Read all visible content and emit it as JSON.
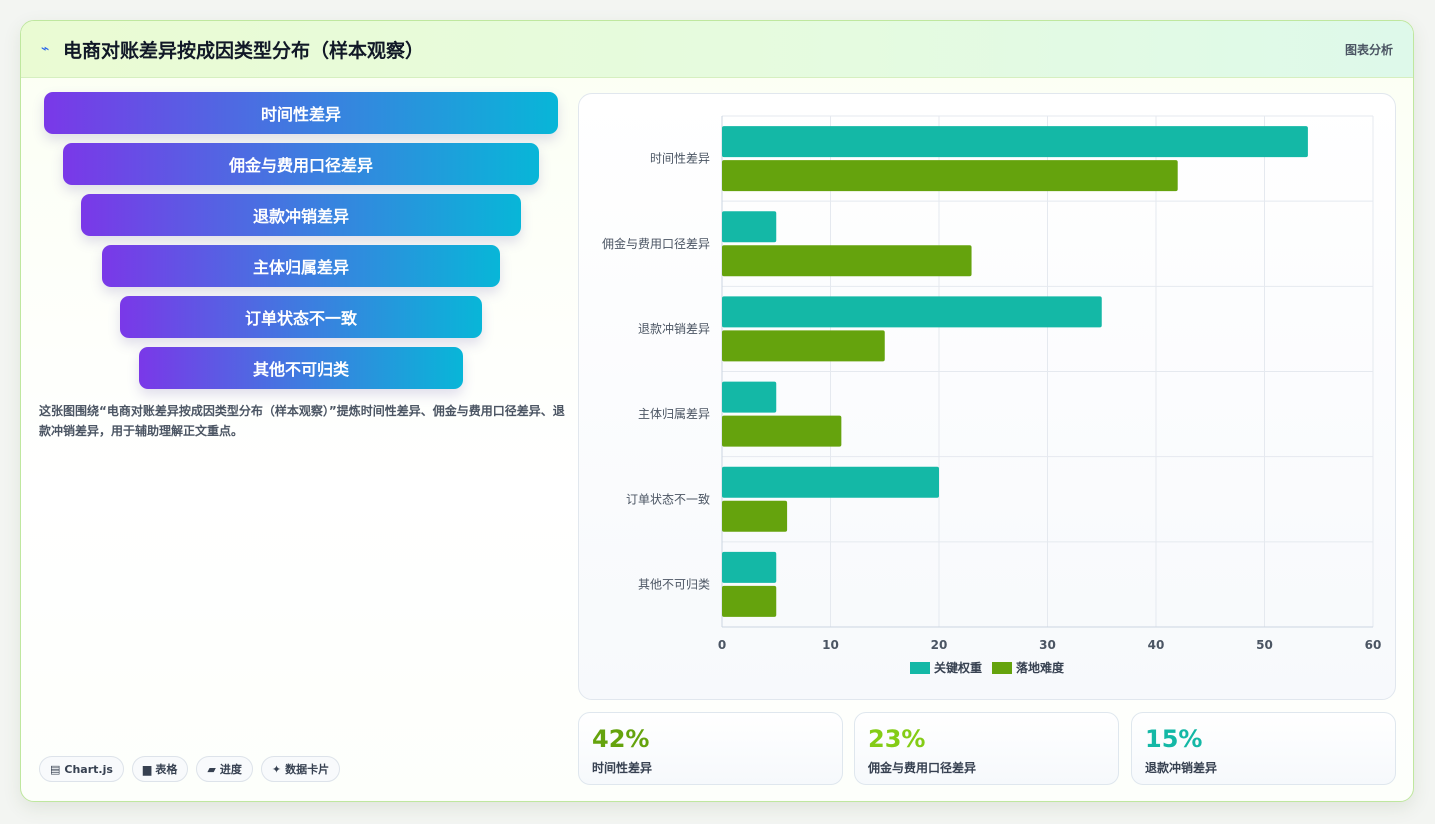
{
  "header": {
    "title": "电商对账差异按成因类型分布（样本观察）",
    "tag": "图表分析",
    "logo_icon": "lightning-icon"
  },
  "funnel": {
    "items": [
      "时间性差异",
      "佣金与费用口径差异",
      "退款冲销差异",
      "主体归属差异",
      "订单状态不一致",
      "其他不可归类"
    ]
  },
  "description": "这张图围绕“电商对账差异按成因类型分布（样本观察）”提炼时间性差异、佣金与费用口径差异、退款冲销差异，用于辅助理解正文重点。",
  "chips": [
    {
      "icon": "▤",
      "label": "Chart.js"
    },
    {
      "icon": "▆",
      "label": "表格"
    },
    {
      "icon": "▰",
      "label": "进度"
    },
    {
      "icon": "✦",
      "label": "数据卡片"
    }
  ],
  "chart_data": {
    "type": "bar",
    "orientation": "horizontal",
    "categories": [
      "时间性差异",
      "佣金与费用口径差异",
      "退款冲销差异",
      "主体归属差异",
      "订单状态不一致",
      "其他不可归类"
    ],
    "series": [
      {
        "name": "关键权重",
        "color": "#14b8a6",
        "values": [
          54,
          5,
          35,
          5,
          20,
          5
        ]
      },
      {
        "name": "落地难度",
        "color": "#65a30d",
        "values": [
          42,
          23,
          15,
          11,
          6,
          5
        ]
      }
    ],
    "xlim": [
      0,
      60
    ],
    "xticks": [
      0,
      10,
      20,
      30,
      40,
      50,
      60
    ],
    "grid": true,
    "legend": "bottom-center"
  },
  "kpis": [
    {
      "value": "42%",
      "label": "时间性差异",
      "color": "#65a30d"
    },
    {
      "value": "23%",
      "label": "佣金与费用口径差异",
      "color": "#84cc16"
    },
    {
      "value": "15%",
      "label": "退款冲销差异",
      "color": "#14b8a6"
    }
  ]
}
